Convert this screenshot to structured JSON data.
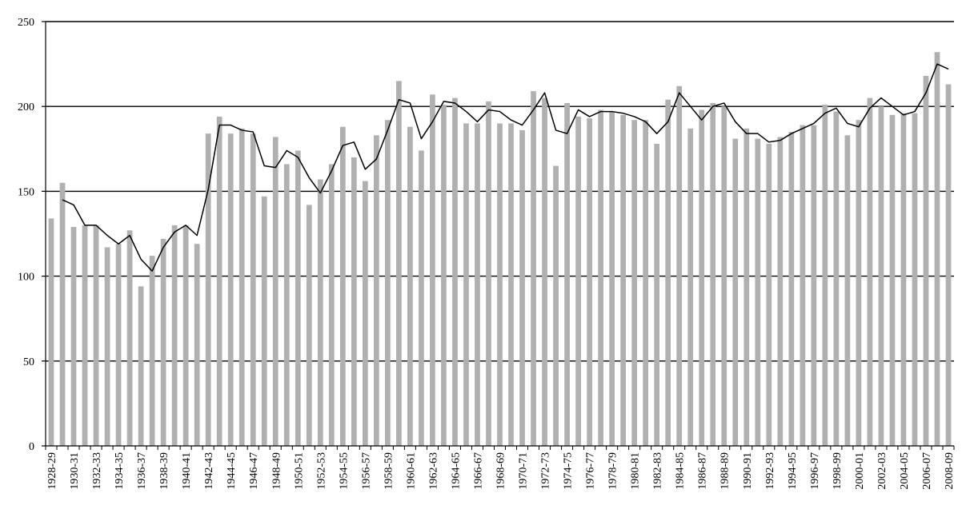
{
  "chart_data": {
    "type": "bar",
    "title": "",
    "xlabel": "",
    "ylabel": "",
    "ylim": [
      0,
      250
    ],
    "yticks": [
      0,
      50,
      100,
      150,
      200,
      250
    ],
    "grid": "horizontal",
    "categories": [
      "1928-29",
      "1929-30",
      "1930-31",
      "1931-32",
      "1932-33",
      "1933-34",
      "1934-35",
      "1935-36",
      "1936-37",
      "1937-38",
      "1938-39",
      "1939-40",
      "1940-41",
      "1941-42",
      "1942-43",
      "1943-44",
      "1944-45",
      "1945-46",
      "1946-47",
      "1947-48",
      "1948-49",
      "1949-50",
      "1950-51",
      "1951-52",
      "1952-53",
      "1953-54",
      "1954-55",
      "1955-56",
      "1956-57",
      "1957-58",
      "1958-59",
      "1959-60",
      "1960-61",
      "1961-62",
      "1962-63",
      "1963-64",
      "1964-65",
      "1965-66",
      "1966-67",
      "1967-68",
      "1968-69",
      "1969-70",
      "1970-71",
      "1971-72",
      "1972-73",
      "1973-74",
      "1974-75",
      "1975-76",
      "1976-77",
      "1977-78",
      "1978-79",
      "1979-80",
      "1980-81",
      "1981-82",
      "1982-83",
      "1983-84",
      "1984-85",
      "1985-86",
      "1986-87",
      "1987-88",
      "1988-89",
      "1989-90",
      "1990-91",
      "1991-92",
      "1992-93",
      "1993-94",
      "1994-95",
      "1995-96",
      "1996-97",
      "1997-98",
      "1998-99",
      "1999-00",
      "2000-01",
      "2001-02",
      "2002-03",
      "2003-04",
      "2004-05",
      "2005-06",
      "2006-07",
      "2007-08",
      "2008-09"
    ],
    "tick_labels": [
      "1928-29",
      "1930-31",
      "1932-33",
      "1934-35",
      "1936-37",
      "1938-39",
      "1940-41",
      "1942-43",
      "1944-45",
      "1946-47",
      "1948-49",
      "1950-51",
      "1952-53",
      "1954-55",
      "1956-57",
      "1958-59",
      "1960-61",
      "1962-63",
      "1964-65",
      "1966-67",
      "1968-69",
      "1970-71",
      "1972-73",
      "1974-75",
      "1976-77",
      "1978-79",
      "1980-81",
      "1982-83",
      "1984-85",
      "1986-87",
      "1988-89",
      "1990-91",
      "1992-93",
      "1994-95",
      "1996-97",
      "1998-99",
      "2000-01",
      "2002-03",
      "2004-05",
      "2006-07",
      "2008-09"
    ],
    "series": [
      {
        "type": "bar",
        "color": "#b0b0b0",
        "values": [
          134,
          155,
          129,
          130,
          130,
          117,
          119,
          127,
          94,
          112,
          122,
          130,
          130,
          119,
          184,
          194,
          184,
          187,
          184,
          147,
          182,
          166,
          174,
          142,
          157,
          166,
          188,
          170,
          156,
          183,
          192,
          215,
          188,
          174,
          207,
          201,
          205,
          190,
          190,
          203,
          190,
          190,
          186,
          209,
          205,
          165,
          202,
          194,
          193,
          198,
          197,
          195,
          192,
          192,
          178,
          204,
          212,
          187,
          198,
          202,
          200,
          181,
          187,
          181,
          178,
          182,
          185,
          189,
          189,
          201,
          197,
          183,
          192,
          205,
          200,
          195,
          196,
          196,
          218,
          232,
          213
        ]
      },
      {
        "type": "line",
        "color": "#000000",
        "values": [
          null,
          145,
          142,
          130,
          130,
          124,
          119,
          124,
          110,
          103,
          117,
          126,
          130,
          124,
          151,
          189,
          189,
          186,
          185,
          165,
          164,
          174,
          170,
          158,
          149,
          162,
          177,
          179,
          163,
          169,
          186,
          204,
          202,
          181,
          191,
          203,
          202,
          197,
          191,
          198,
          197,
          192,
          189,
          198,
          208,
          186,
          184,
          198,
          194,
          197,
          197,
          196,
          194,
          191,
          184,
          191,
          208,
          200,
          192,
          200,
          202,
          191,
          184,
          184,
          179,
          180,
          184,
          187,
          190,
          196,
          199,
          190,
          188,
          199,
          205,
          200,
          195,
          197,
          208,
          225,
          222
        ]
      }
    ]
  }
}
